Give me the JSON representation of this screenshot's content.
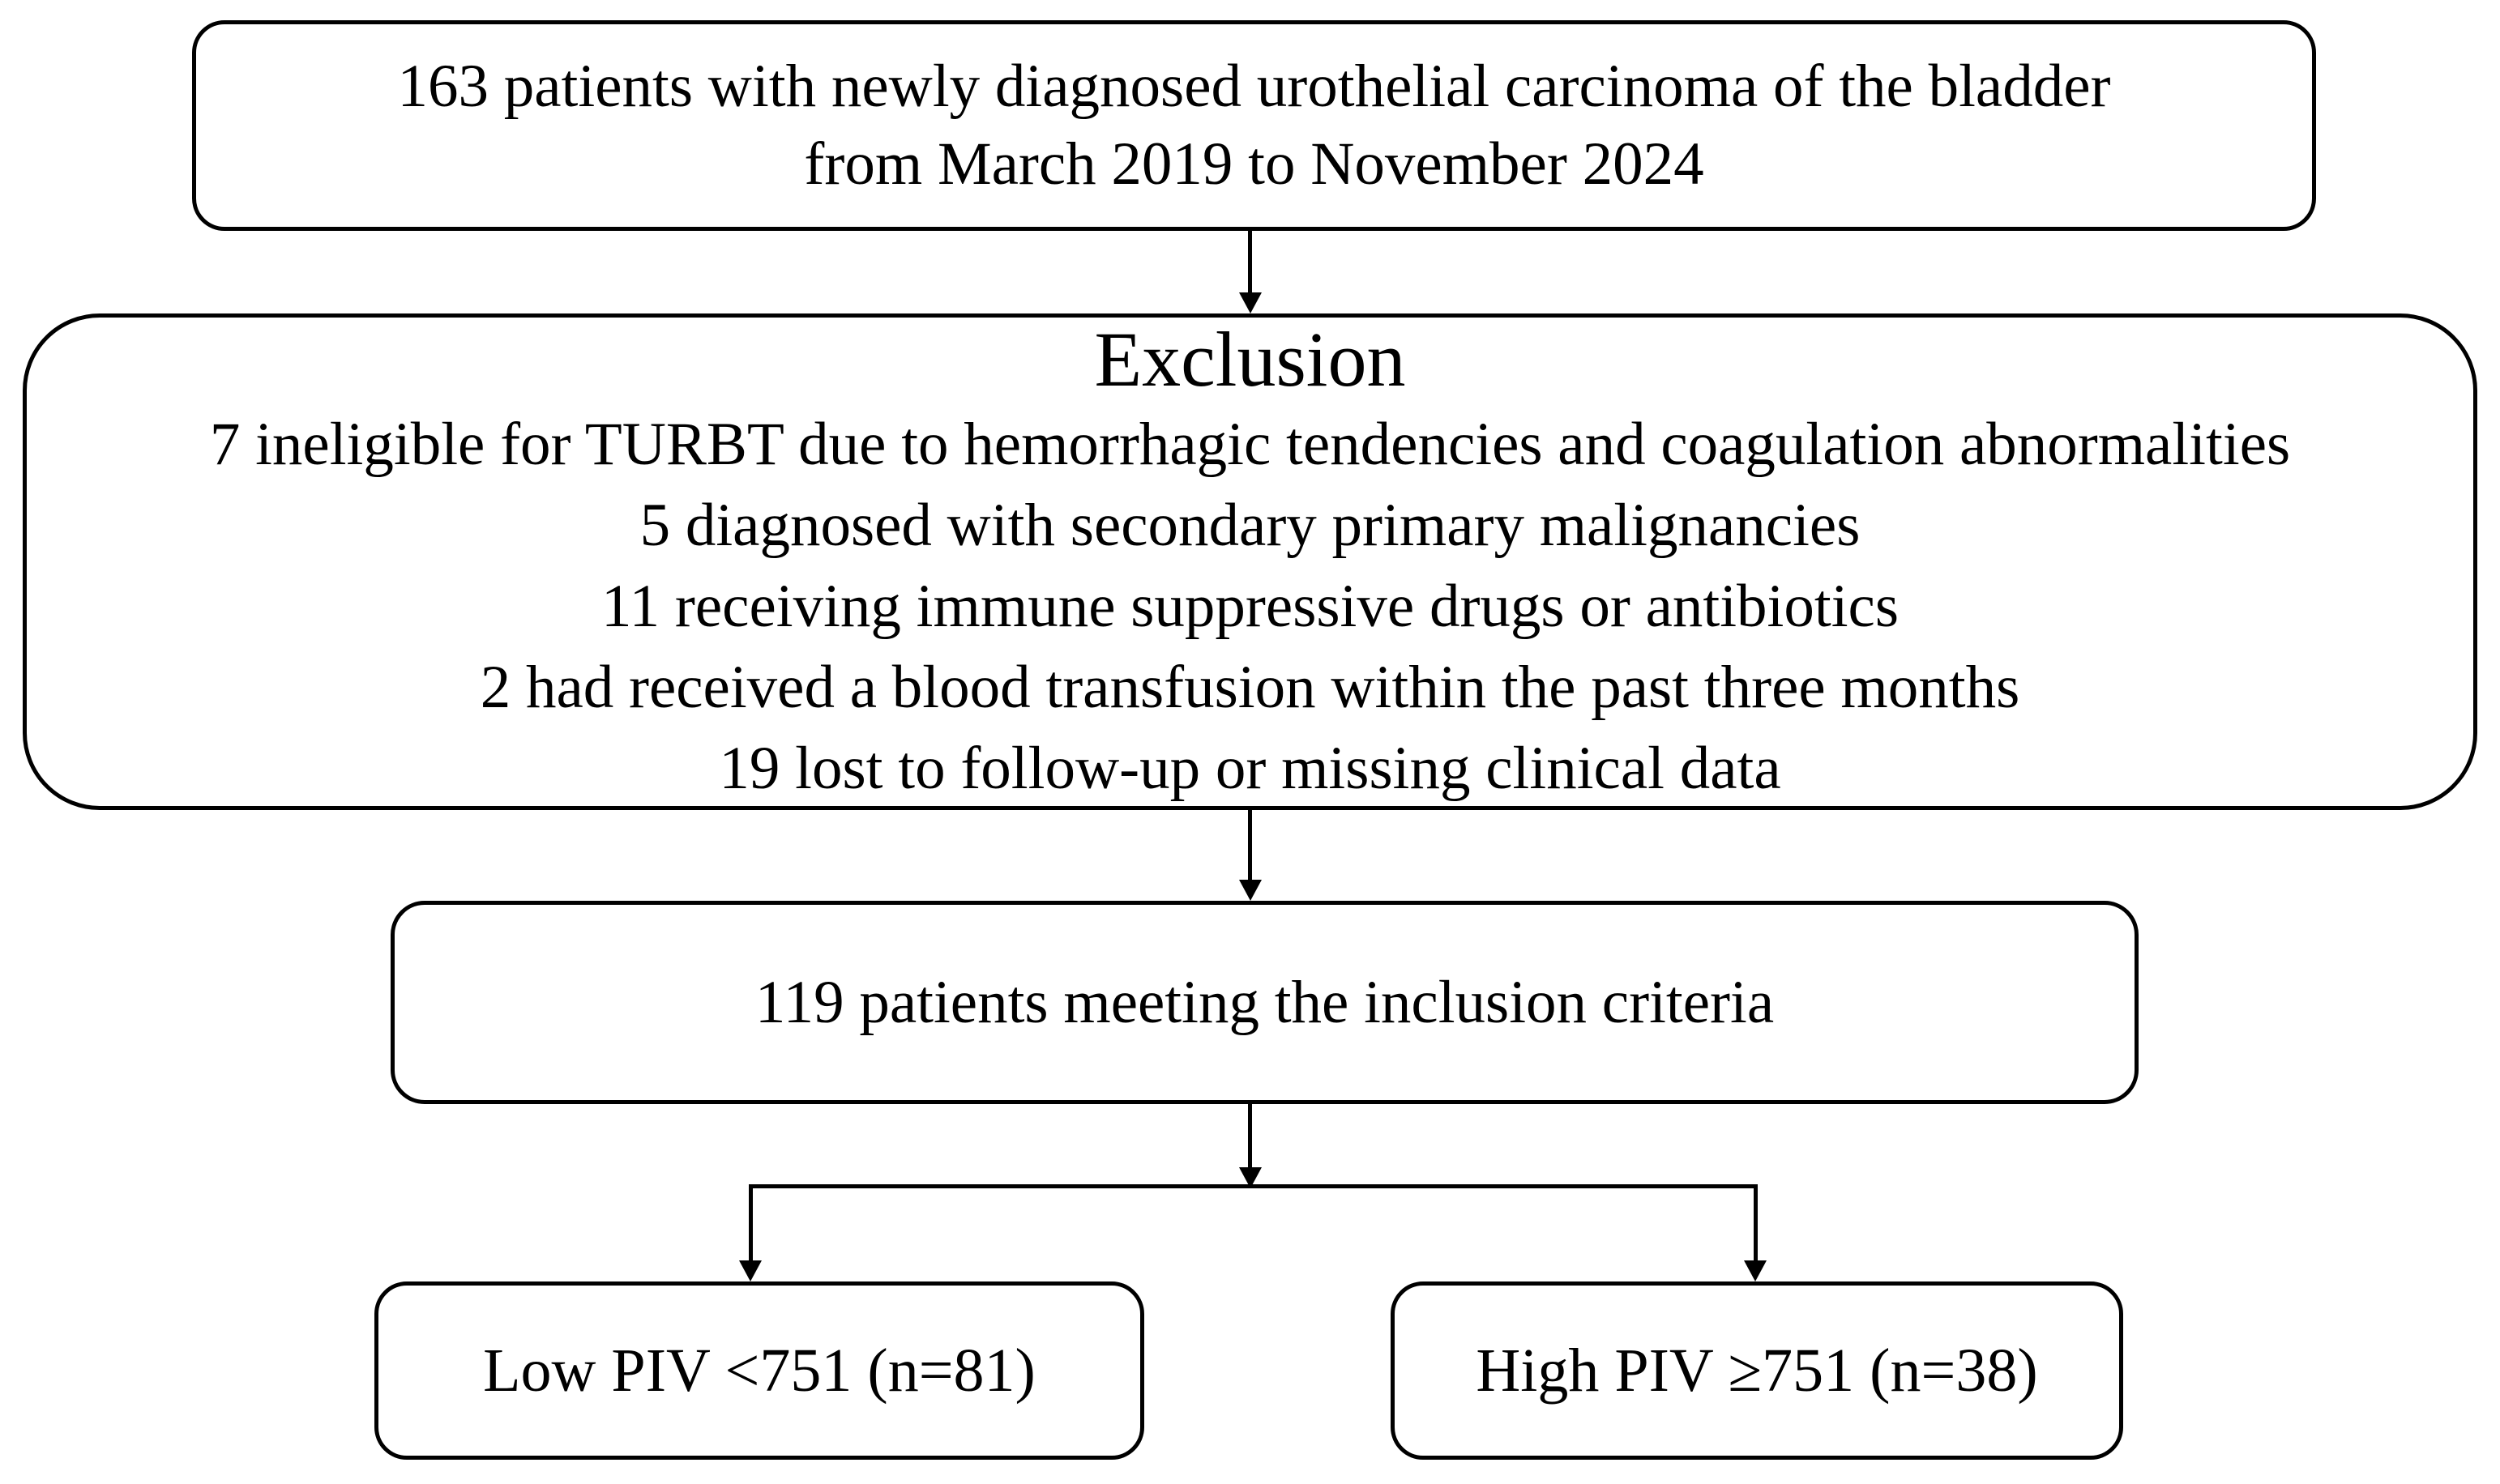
{
  "flow": {
    "start": {
      "line1": "163 patients with newly diagnosed urothelial carcinoma of the bladder",
      "line2": "from March 2019 to November 2024"
    },
    "exclusion": {
      "title": "Exclusion",
      "items": [
        "7 ineligible for TURBT due to hemorrhagic tendencies and coagulation abnormalities",
        "5 diagnosed with secondary primary malignancies",
        "11 receiving immune suppressive drugs or antibiotics",
        "2 had received a blood transfusion within the past three months",
        "19 lost to follow-up or missing clinical data"
      ]
    },
    "inclusion": {
      "text": "119 patients meeting the inclusion criteria"
    },
    "low_piv": {
      "text": "Low PIV <751 (n=81)"
    },
    "high_piv": {
      "text": "High PIV ≥751 (n=38)"
    },
    "colors": {
      "stroke": "#000000",
      "text": "#000000",
      "background": "#ffffff"
    }
  }
}
